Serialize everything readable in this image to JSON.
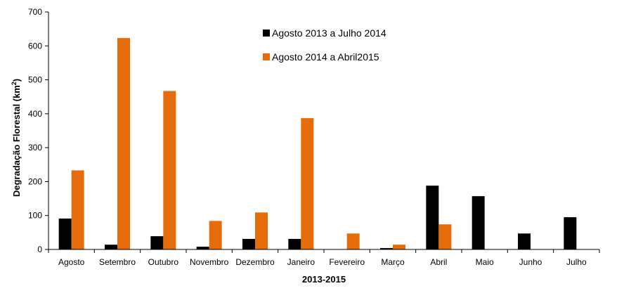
{
  "chart_data": {
    "type": "bar",
    "categories": [
      "Agosto",
      "Setembro",
      "Outubro",
      "Novembro",
      "Dezembro",
      "Janeiro",
      "Fevereiro",
      "Março",
      "Abril",
      "Maio",
      "Junho",
      "Julho"
    ],
    "series": [
      {
        "name": "Agosto 2013 a Julho 2014",
        "color": "#000000",
        "values": [
          91,
          14,
          39,
          8,
          31,
          31,
          0,
          4,
          188,
          157,
          47,
          95
        ]
      },
      {
        "name": "Agosto 2014 a Abril2015",
        "color": "#e46c0a",
        "values": [
          233,
          623,
          467,
          84,
          109,
          387,
          47,
          14,
          74,
          null,
          null,
          null
        ]
      }
    ],
    "xlabel": "2013-2015",
    "ylabel": "Degradação Florestal (km",
    "ylabel_sup": "2",
    "ylabel_end": ")",
    "ylim": [
      0,
      700
    ],
    "yticks": [
      0,
      100,
      200,
      300,
      400,
      500,
      600,
      700
    ],
    "grid": false,
    "legend_position": "top-center"
  }
}
